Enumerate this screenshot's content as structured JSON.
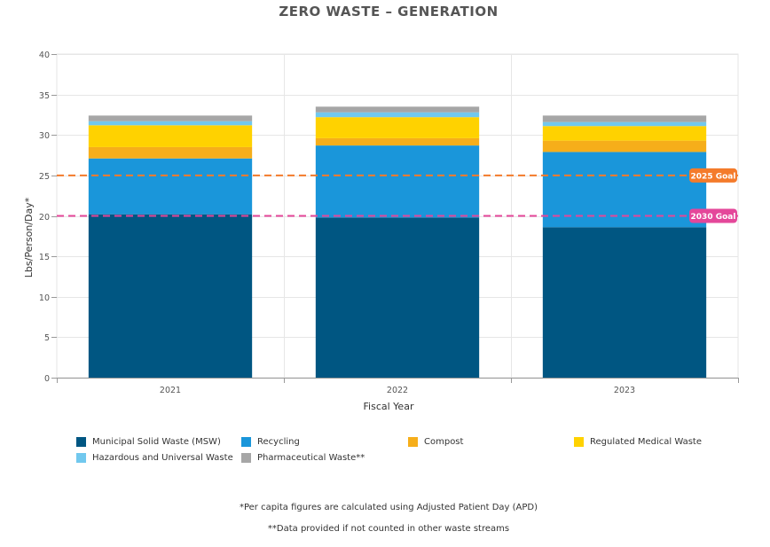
{
  "colors": {
    "msw": "#005682",
    "recycling": "#1a96da",
    "compost": "#f6ae1a",
    "medical": "#ffd200",
    "hazardous": "#71c8ee",
    "pharma": "#a6a6a6",
    "goal2025": "#f47b2b",
    "goal2030": "#e4479a"
  },
  "chart_data": {
    "type": "bar",
    "stacked": true,
    "title": "ZERO WASTE – GENERATION",
    "xlabel": "Fiscal Year",
    "ylabel": "Lbs/Person/Day*",
    "ylim": [
      0,
      40
    ],
    "yticks": [
      "0",
      "5",
      "10",
      "15",
      "20",
      "25",
      "30",
      "35",
      "40"
    ],
    "categories": [
      "2021",
      "2022",
      "2023"
    ],
    "series": [
      {
        "name": "Municipal Solid Waste (MSW)",
        "key": "msw",
        "values": [
          20.2,
          19.8,
          18.6
        ]
      },
      {
        "name": "Recycling",
        "key": "recycling",
        "values": [
          6.9,
          8.9,
          9.3
        ]
      },
      {
        "name": "Compost",
        "key": "compost",
        "values": [
          1.4,
          0.9,
          1.4
        ]
      },
      {
        "name": "Regulated Medical Waste",
        "key": "medical",
        "values": [
          2.7,
          2.6,
          1.8
        ]
      },
      {
        "name": "Hazardous and Universal Waste",
        "key": "hazardous",
        "values": [
          0.5,
          0.6,
          0.5
        ]
      },
      {
        "name": "Pharmaceutical Waste**",
        "key": "pharma",
        "values": [
          0.7,
          0.7,
          0.8
        ]
      }
    ],
    "goals": [
      {
        "label": "2025 Goal",
        "value": 25,
        "key": "goal2025"
      },
      {
        "label": "2030 Goal",
        "value": 20,
        "key": "goal2030"
      }
    ],
    "legend_position": "bottom"
  },
  "footnotes": {
    "apd": "*Per capita figures are calculated using Adjusted Patient Day (APD)",
    "other": "**Data provided if not counted in other waste streams"
  }
}
